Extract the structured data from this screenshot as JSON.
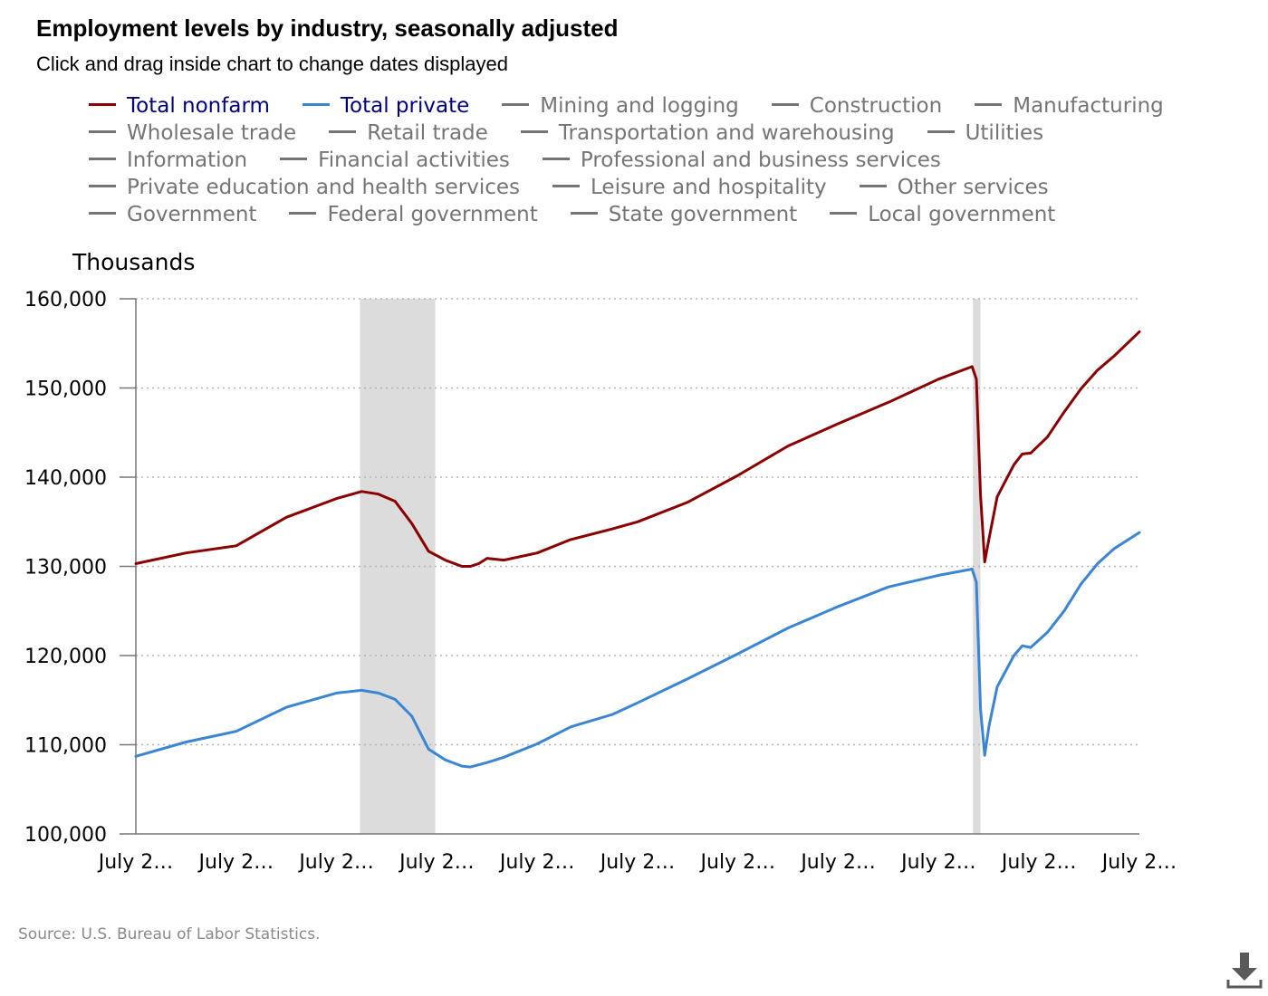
{
  "title": "Employment levels by industry, seasonally adjusted",
  "subtitle": "Click and drag inside chart to change dates displayed",
  "legend_rows": [
    [
      {
        "label": "Total nonfarm",
        "state": "on-red"
      },
      {
        "label": "Total private",
        "state": "on-blue"
      },
      {
        "label": "Mining and logging",
        "state": "off"
      },
      {
        "label": "Construction",
        "state": "off"
      },
      {
        "label": "Manufacturing",
        "state": "off"
      }
    ],
    [
      {
        "label": "Wholesale trade",
        "state": "off"
      },
      {
        "label": "Retail trade",
        "state": "off"
      },
      {
        "label": "Transportation and warehousing",
        "state": "off"
      },
      {
        "label": "Utilities",
        "state": "off"
      }
    ],
    [
      {
        "label": "Information",
        "state": "off"
      },
      {
        "label": "Financial activities",
        "state": "off"
      },
      {
        "label": "Professional and business services",
        "state": "off"
      }
    ],
    [
      {
        "label": "Private education and health services",
        "state": "off"
      },
      {
        "label": "Leisure and hospitality",
        "state": "off"
      },
      {
        "label": "Other services",
        "state": "off"
      }
    ],
    [
      {
        "label": "Government",
        "state": "off"
      },
      {
        "label": "Federal government",
        "state": "off"
      },
      {
        "label": "State government",
        "state": "off"
      },
      {
        "label": "Local government",
        "state": "off"
      }
    ]
  ],
  "y_axis_title": "Thousands",
  "source": "Source: U.S. Bureau of Labor Statistics.",
  "colors": {
    "total_nonfarm": "#8b0000",
    "total_private": "#3a86d4",
    "inactive": "#757575",
    "recession": "#dcdcdc",
    "grid": "#b5b5b5"
  },
  "icons": {
    "download": "download-icon"
  },
  "chart_data": {
    "type": "line",
    "x_tick_labels": [
      "July 2…",
      "July 2…",
      "July 2…",
      "July 2…",
      "July 2…",
      "July 2…",
      "July 2…",
      "July 2…",
      "July 2…",
      "July 2…",
      "July 2…"
    ],
    "x_ticks": [
      0,
      12,
      24,
      36,
      48,
      60,
      72,
      84,
      96,
      108,
      120
    ],
    "x_unit": "months since first tick",
    "ylim": [
      100000,
      160000
    ],
    "y_ticks": [
      100000,
      110000,
      120000,
      130000,
      140000,
      150000,
      160000
    ],
    "y_tick_labels": [
      "100,000",
      "110,000",
      "120,000",
      "130,000",
      "140,000",
      "150,000",
      "160,000"
    ],
    "grid": true,
    "legend_placement": "top",
    "recession_bands": [
      [
        26.8,
        35.8
      ],
      [
        100.1,
        101.0
      ]
    ],
    "series": [
      {
        "name": "Total nonfarm",
        "color": "#8b0000",
        "points": [
          [
            0,
            130300
          ],
          [
            6,
            131500
          ],
          [
            12,
            132300
          ],
          [
            18,
            135500
          ],
          [
            24,
            137600
          ],
          [
            27,
            138400
          ],
          [
            29,
            138100
          ],
          [
            31,
            137300
          ],
          [
            33,
            134800
          ],
          [
            35,
            131700
          ],
          [
            37,
            130700
          ],
          [
            39,
            130000
          ],
          [
            40,
            130000
          ],
          [
            41,
            130300
          ],
          [
            42,
            130900
          ],
          [
            44,
            130700
          ],
          [
            48,
            131500
          ],
          [
            52,
            133000
          ],
          [
            57,
            134200
          ],
          [
            60,
            135000
          ],
          [
            66,
            137200
          ],
          [
            72,
            140200
          ],
          [
            78,
            143500
          ],
          [
            84,
            146000
          ],
          [
            90,
            148400
          ],
          [
            96,
            151000
          ],
          [
            100,
            152400
          ],
          [
            100.5,
            151000
          ],
          [
            101,
            138000
          ],
          [
            101.5,
            130500
          ],
          [
            102,
            133000
          ],
          [
            103,
            137800
          ],
          [
            105,
            141400
          ],
          [
            106,
            142600
          ],
          [
            107,
            142700
          ],
          [
            109,
            144500
          ],
          [
            111,
            147300
          ],
          [
            113,
            149900
          ],
          [
            115,
            152000
          ],
          [
            117,
            153600
          ],
          [
            120,
            156300
          ]
        ]
      },
      {
        "name": "Total private",
        "color": "#3a86d4",
        "points": [
          [
            0,
            108700
          ],
          [
            6,
            110300
          ],
          [
            12,
            111500
          ],
          [
            18,
            114200
          ],
          [
            24,
            115800
          ],
          [
            27,
            116100
          ],
          [
            29,
            115800
          ],
          [
            31,
            115100
          ],
          [
            33,
            113200
          ],
          [
            35,
            109500
          ],
          [
            37,
            108300
          ],
          [
            39,
            107600
          ],
          [
            40,
            107500
          ],
          [
            42,
            108000
          ],
          [
            44,
            108600
          ],
          [
            48,
            110100
          ],
          [
            52,
            112000
          ],
          [
            57,
            113400
          ],
          [
            60,
            114700
          ],
          [
            66,
            117400
          ],
          [
            72,
            120200
          ],
          [
            78,
            123100
          ],
          [
            84,
            125500
          ],
          [
            90,
            127700
          ],
          [
            96,
            129000
          ],
          [
            100,
            129700
          ],
          [
            100.5,
            128200
          ],
          [
            101,
            114000
          ],
          [
            101.5,
            108800
          ],
          [
            102,
            112000
          ],
          [
            103,
            116500
          ],
          [
            105,
            120000
          ],
          [
            106,
            121100
          ],
          [
            107,
            120900
          ],
          [
            109,
            122600
          ],
          [
            111,
            125000
          ],
          [
            113,
            128000
          ],
          [
            115,
            130300
          ],
          [
            117,
            132000
          ],
          [
            120,
            133800
          ]
        ]
      }
    ]
  }
}
